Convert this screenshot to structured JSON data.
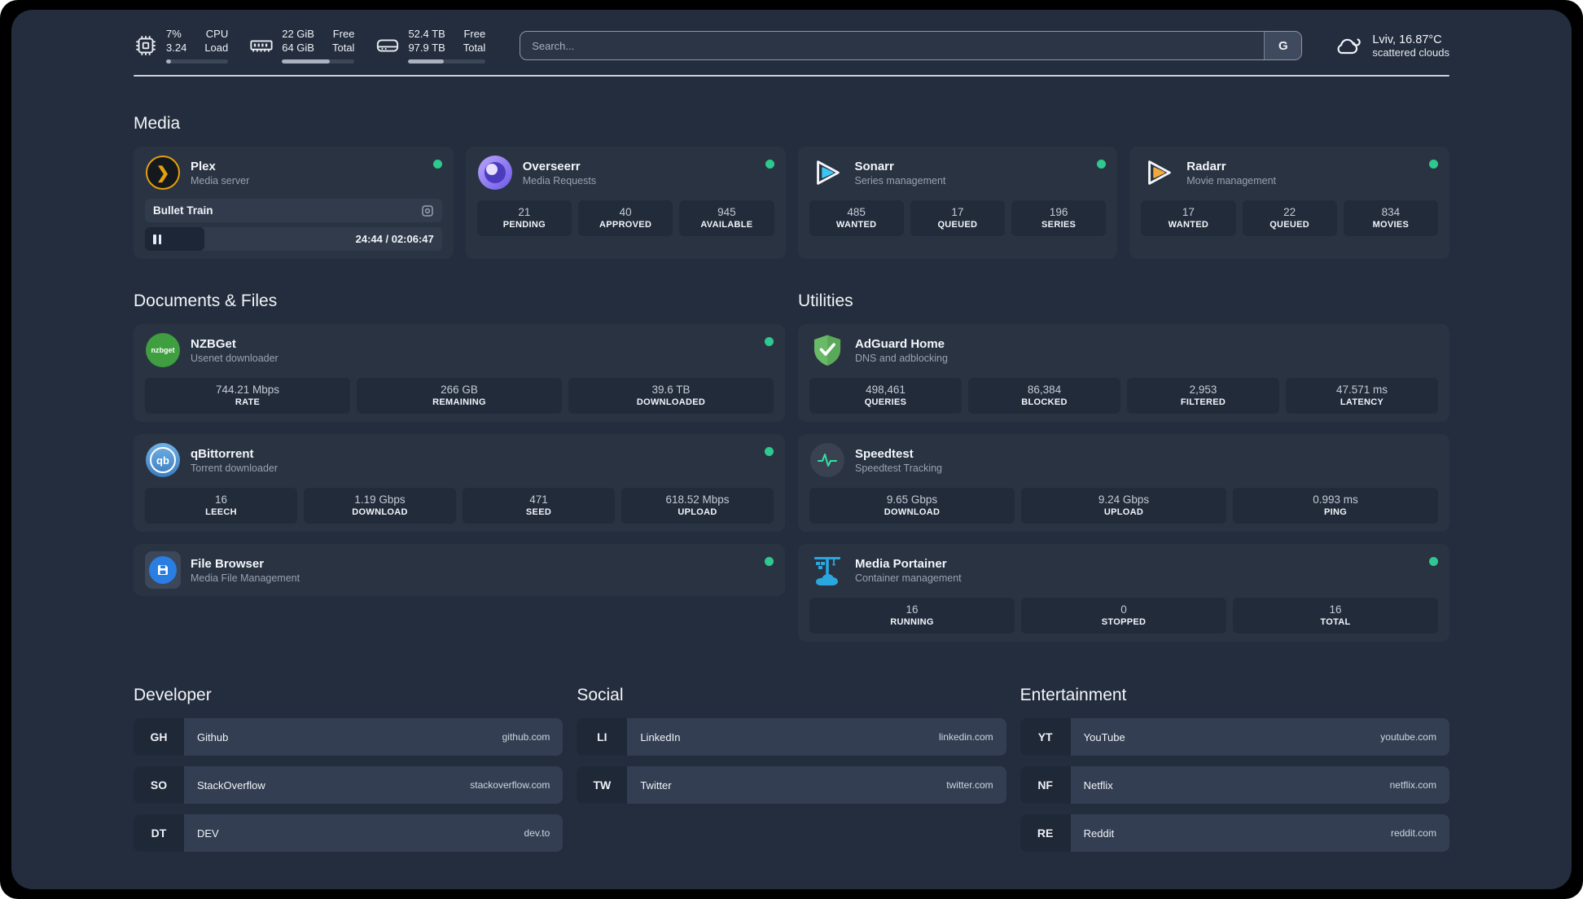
{
  "header": {
    "system_stats": [
      {
        "name": "cpu",
        "value_top": "7%",
        "value_bottom": "3.24",
        "label_top": "CPU",
        "label_bottom": "Load",
        "progress_pct": 8
      },
      {
        "name": "memory",
        "value_top": "22 GiB",
        "value_bottom": "64 GiB",
        "label_top": "Free",
        "label_bottom": "Total",
        "progress_pct": 66
      },
      {
        "name": "storage",
        "value_top": "52.4 TB",
        "value_bottom": "97.9 TB",
        "label_top": "Free",
        "label_bottom": "Total",
        "progress_pct": 46
      }
    ],
    "search": {
      "placeholder": "Search...",
      "engine_button": "G"
    },
    "weather": {
      "location_temp": "Lviv, 16.87°C",
      "condition": "scattered clouds"
    }
  },
  "sections": {
    "media": "Media",
    "documents": "Documents & Files",
    "utilities": "Utilities",
    "developer": "Developer",
    "social": "Social",
    "entertainment": "Entertainment"
  },
  "apps": {
    "plex": {
      "title": "Plex",
      "subtitle": "Media server",
      "now_playing": "Bullet Train",
      "time": "24:44 / 02:06:47",
      "progress_pct": 20
    },
    "overseerr": {
      "title": "Overseerr",
      "subtitle": "Media Requests",
      "stats": [
        {
          "value": "21",
          "label": "PENDING"
        },
        {
          "value": "40",
          "label": "APPROVED"
        },
        {
          "value": "945",
          "label": "AVAILABLE"
        }
      ]
    },
    "sonarr": {
      "title": "Sonarr",
      "subtitle": "Series management",
      "stats": [
        {
          "value": "485",
          "label": "WANTED"
        },
        {
          "value": "17",
          "label": "QUEUED"
        },
        {
          "value": "196",
          "label": "SERIES"
        }
      ]
    },
    "radarr": {
      "title": "Radarr",
      "subtitle": "Movie management",
      "stats": [
        {
          "value": "17",
          "label": "WANTED"
        },
        {
          "value": "22",
          "label": "QUEUED"
        },
        {
          "value": "834",
          "label": "MOVIES"
        }
      ]
    },
    "nzbget": {
      "title": "NZBGet",
      "subtitle": "Usenet downloader",
      "logo_text": "nzbget",
      "stats": [
        {
          "value": "744.21 Mbps",
          "label": "RATE"
        },
        {
          "value": "266 GB",
          "label": "REMAINING"
        },
        {
          "value": "39.6 TB",
          "label": "DOWNLOADED"
        }
      ]
    },
    "qbittorrent": {
      "title": "qBittorrent",
      "subtitle": "Torrent downloader",
      "logo_text": "qb",
      "stats": [
        {
          "value": "16",
          "label": "LEECH"
        },
        {
          "value": "1.19 Gbps",
          "label": "DOWNLOAD"
        },
        {
          "value": "471",
          "label": "SEED"
        },
        {
          "value": "618.52 Mbps",
          "label": "UPLOAD"
        }
      ]
    },
    "filebrowser": {
      "title": "File Browser",
      "subtitle": "Media File Management"
    },
    "adguard": {
      "title": "AdGuard Home",
      "subtitle": "DNS and adblocking",
      "stats": [
        {
          "value": "498,461",
          "label": "QUERIES"
        },
        {
          "value": "86,384",
          "label": "BLOCKED"
        },
        {
          "value": "2,953",
          "label": "FILTERED"
        },
        {
          "value": "47.571 ms",
          "label": "LATENCY"
        }
      ]
    },
    "speedtest": {
      "title": "Speedtest",
      "subtitle": "Speedtest Tracking",
      "stats": [
        {
          "value": "9.65 Gbps",
          "label": "DOWNLOAD"
        },
        {
          "value": "9.24 Gbps",
          "label": "UPLOAD"
        },
        {
          "value": "0.993 ms",
          "label": "PING"
        }
      ]
    },
    "portainer": {
      "title": "Media Portainer",
      "subtitle": "Container management",
      "stats": [
        {
          "value": "16",
          "label": "RUNNING"
        },
        {
          "value": "0",
          "label": "STOPPED"
        },
        {
          "value": "16",
          "label": "TOTAL"
        }
      ]
    }
  },
  "bookmarks": {
    "developer": [
      {
        "abbr": "GH",
        "name": "Github",
        "url": "github.com"
      },
      {
        "abbr": "SO",
        "name": "StackOverflow",
        "url": "stackoverflow.com"
      },
      {
        "abbr": "DT",
        "name": "DEV",
        "url": "dev.to"
      }
    ],
    "social": [
      {
        "abbr": "LI",
        "name": "LinkedIn",
        "url": "linkedin.com"
      },
      {
        "abbr": "TW",
        "name": "Twitter",
        "url": "twitter.com"
      }
    ],
    "entertainment": [
      {
        "abbr": "YT",
        "name": "YouTube",
        "url": "youtube.com"
      },
      {
        "abbr": "NF",
        "name": "Netflix",
        "url": "netflix.com"
      },
      {
        "abbr": "RE",
        "name": "Reddit",
        "url": "reddit.com"
      }
    ]
  },
  "colors": {
    "status_online": "#2ec98e",
    "plex_accent": "#e5a00d",
    "sonarr_accent": "#3bc5f3",
    "radarr_accent": "#f0a93a",
    "nzbget_accent": "#3f9e3f",
    "adguard_accent": "#68ba67",
    "speedtest_accent": "#30e3a0",
    "portainer_accent": "#2ba7e0"
  }
}
